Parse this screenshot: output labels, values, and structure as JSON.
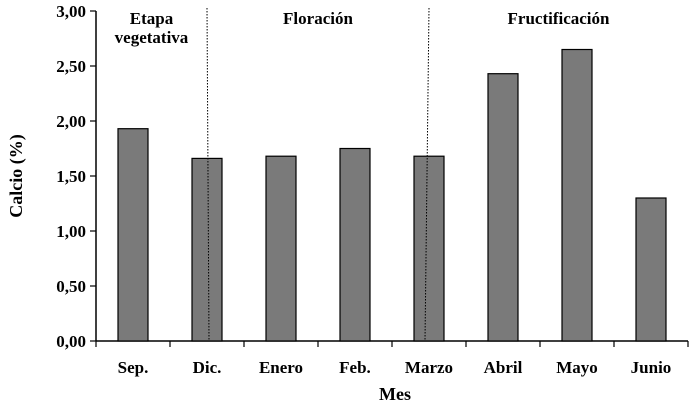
{
  "chart_data": {
    "type": "bar",
    "categories": [
      "Sep.",
      "Dic.",
      "Enero",
      "Feb.",
      "Marzo",
      "Abril",
      "Mayo",
      "Junio"
    ],
    "values": [
      1.93,
      1.66,
      1.68,
      1.75,
      1.68,
      2.43,
      2.65,
      1.3
    ],
    "xlabel": "Mes",
    "ylabel": "Calcio (%)",
    "ylim": [
      0,
      3
    ],
    "yticks": [
      "0,00",
      "0,50",
      "1,00",
      "1,50",
      "2,00",
      "2,50",
      "3,00"
    ],
    "ytick_values": [
      0,
      0.5,
      1,
      1.5,
      2,
      2.5,
      3
    ],
    "bar_color": "#7a7a7a",
    "grid": false,
    "legend": "none",
    "phases": [
      {
        "label_lines": [
          "Etapa",
          "vegetativa"
        ],
        "from_category": 0,
        "to_category": 1
      },
      {
        "label_lines": [
          "Floración"
        ],
        "from_category": 1,
        "to_category": 4
      },
      {
        "label_lines": [
          "Fructificación"
        ],
        "from_category": 4,
        "to_category": 7
      }
    ]
  }
}
